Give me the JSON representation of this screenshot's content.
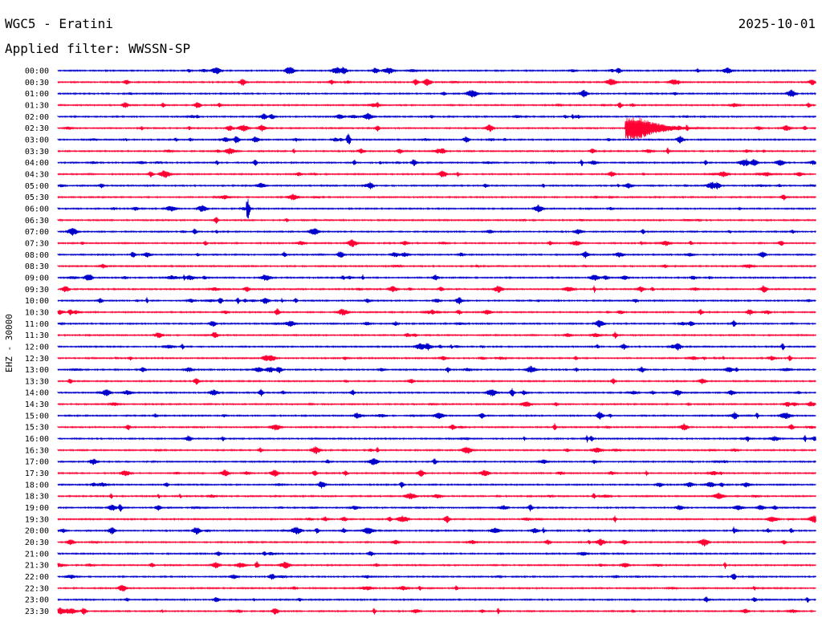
{
  "header": {
    "station": "WGC5 - Eratini",
    "date": "2025-10-01",
    "filter": "Applied filter: WWSSN-SP"
  },
  "colors": {
    "even": "#0000cc",
    "odd": "#ff0033"
  },
  "chart_data": {
    "type": "line",
    "title": "WGC5 - Eratini",
    "subtitle": "Applied filter: WWSSN-SP",
    "ylabel": "EHZ - 30000",
    "y_tick_labels": [
      "00:00",
      "00:30",
      "01:00",
      "01:30",
      "02:00",
      "02:30",
      "03:00",
      "03:30",
      "04:00",
      "04:30",
      "05:00",
      "05:30",
      "06:00",
      "06:30",
      "07:00",
      "07:30",
      "08:00",
      "08:30",
      "09:00",
      "09:30",
      "10:00",
      "10:30",
      "11:00",
      "11:30",
      "12:00",
      "12:30",
      "13:00",
      "13:30",
      "14:00",
      "14:30",
      "15:00",
      "15:30",
      "16:00",
      "16:30",
      "17:00",
      "17:30",
      "18:00",
      "18:30",
      "19:00",
      "19:30",
      "20:00",
      "20:30",
      "21:00",
      "21:30",
      "22:00",
      "22:30",
      "23:00",
      "23:30"
    ],
    "row_minutes": 30,
    "grid": false,
    "notable_events": [
      {
        "row": "02:30",
        "minute": 22.5,
        "amplitude": "large",
        "duration_min": 2
      },
      {
        "row": "03:00",
        "minute": 11.5,
        "amplitude": "medium"
      },
      {
        "row": "06:00",
        "minute": 7.5,
        "amplitude": "large"
      }
    ]
  }
}
